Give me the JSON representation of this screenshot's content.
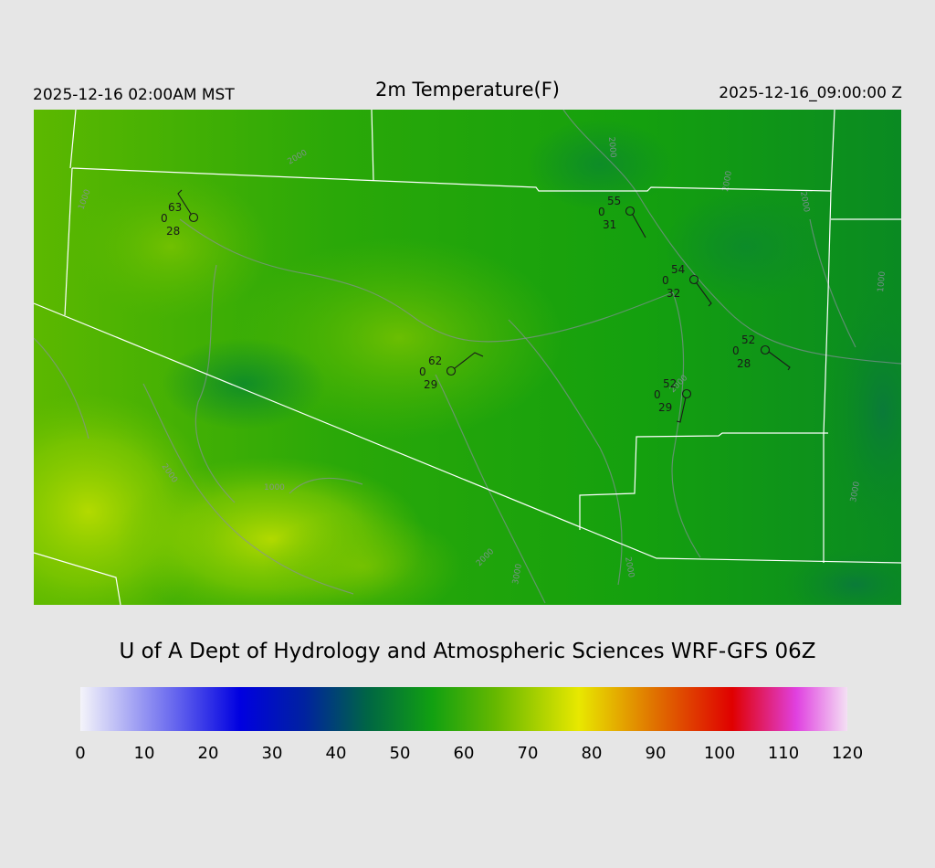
{
  "header": {
    "local_time": "2025-12-16 02:00AM MST",
    "title": "2m Temperature(F)",
    "utc_time": "2025-12-16_09:00:00 Z"
  },
  "credit": "U of A Dept of Hydrology and Atmospheric Sciences WRF-GFS 06Z",
  "colorbar": {
    "min": 0,
    "max": 120,
    "tick_labels": [
      "0",
      "10",
      "20",
      "30",
      "40",
      "50",
      "60",
      "70",
      "80",
      "90",
      "100",
      "110",
      "120"
    ],
    "stops": [
      {
        "value": 0,
        "color": "#f4f4fa"
      },
      {
        "value": 15,
        "color": "#6464ee"
      },
      {
        "value": 25,
        "color": "#0000e0"
      },
      {
        "value": 35,
        "color": "#0022a0"
      },
      {
        "value": 45,
        "color": "#006644"
      },
      {
        "value": 55,
        "color": "#11a011"
      },
      {
        "value": 65,
        "color": "#66b800"
      },
      {
        "value": 78,
        "color": "#e8e800"
      },
      {
        "value": 90,
        "color": "#e07000"
      },
      {
        "value": 102,
        "color": "#e00000"
      },
      {
        "value": 112,
        "color": "#e040e0"
      },
      {
        "value": 120,
        "color": "#f4e0f4"
      }
    ]
  },
  "contour_labels": [
    "1000",
    "2000",
    "1000",
    "2000",
    "3000",
    "2000",
    "2000",
    "2000",
    "2000",
    "1000",
    "2000",
    "3000",
    "2000"
  ],
  "stations": [
    {
      "id": "nw",
      "temp": "63",
      "cloud": "0",
      "dew": "28"
    },
    {
      "id": "north",
      "temp": "55",
      "cloud": "0",
      "dew": "31"
    },
    {
      "id": "ne",
      "temp": "54",
      "cloud": "0",
      "dew": "32"
    },
    {
      "id": "east",
      "temp": "52",
      "cloud": "0",
      "dew": "28"
    },
    {
      "id": "center",
      "temp": "62",
      "cloud": "0",
      "dew": "29"
    },
    {
      "id": "se",
      "temp": "52",
      "cloud": "0",
      "dew": "29"
    }
  ]
}
